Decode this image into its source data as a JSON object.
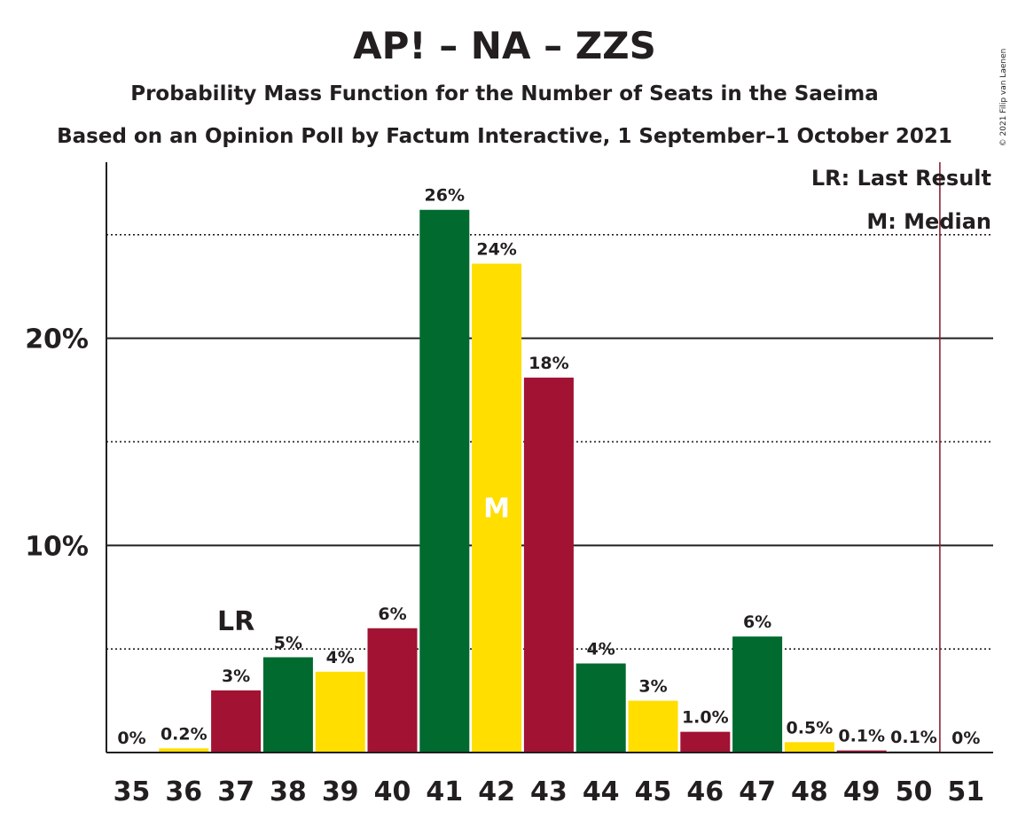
{
  "chart_data": {
    "type": "bar",
    "title": "AP! – NA – ZZS",
    "subtitle": "Probability Mass Function for the Number of Seats in the Saeima",
    "subtitle2": "Based on an Opinion Poll by Factum Interactive, 1 September–1 October 2021",
    "copyright": "© 2021 Filip van Laenen",
    "categories": [
      "35",
      "36",
      "37",
      "38",
      "39",
      "40",
      "41",
      "42",
      "43",
      "44",
      "45",
      "46",
      "47",
      "48",
      "49",
      "50",
      "51"
    ],
    "values": [
      0,
      0.2,
      3.0,
      4.6,
      3.9,
      6.0,
      26.2,
      23.6,
      18.1,
      4.3,
      2.5,
      1.0,
      5.6,
      0.5,
      0.1,
      0.05,
      0
    ],
    "labels": [
      "0%",
      "0.2%",
      "3%",
      "5%",
      "4%",
      "6%",
      "26%",
      "24%",
      "18%",
      "4%",
      "3%",
      "1.0%",
      "6%",
      "0.5%",
      "0.1%",
      "0.1%",
      "0%"
    ],
    "bar_colors": [
      "#006a2f",
      "#ffde00",
      "#a21232",
      "#006a2f",
      "#ffde00",
      "#a21232",
      "#006a2f",
      "#ffde00",
      "#a21232",
      "#006a2f",
      "#ffde00",
      "#a21232",
      "#006a2f",
      "#ffde00",
      "#a21232",
      "#006a2f",
      "#ffde00"
    ],
    "ylim": [
      0,
      28.5
    ],
    "yticks": [
      {
        "value": 10,
        "label": "10%"
      },
      {
        "value": 20,
        "label": "20%"
      }
    ],
    "minor_gridlines": [
      5,
      15,
      25
    ],
    "last_result": {
      "category": "37",
      "label": "LR"
    },
    "median": {
      "category": "42",
      "label": "M"
    },
    "majority_line_after": "50",
    "majority_line_color": "#8b2332",
    "legend": [
      "LR: Last Result",
      "M: Median"
    ],
    "legend_position": "top-right"
  }
}
